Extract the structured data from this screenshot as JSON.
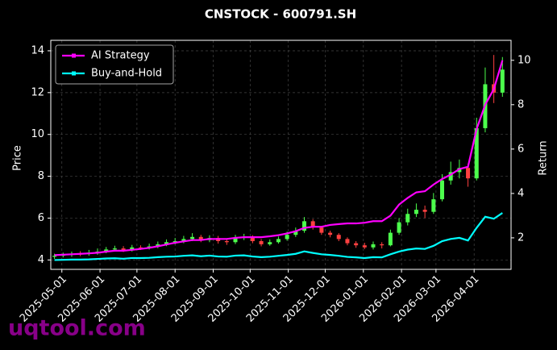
{
  "chart_data": {
    "type": "candlestick",
    "title": "CNSTOCK - 600791.SH",
    "y_label": "Price",
    "y2_label": "Return",
    "watermark": "uqtool.com",
    "x": [
      "2025-04-25",
      "2025-05-02",
      "2025-05-09",
      "2025-05-16",
      "2025-05-23",
      "2025-05-30",
      "2025-06-06",
      "2025-06-13",
      "2025-06-20",
      "2025-06-27",
      "2025-07-04",
      "2025-07-11",
      "2025-07-18",
      "2025-07-25",
      "2025-08-01",
      "2025-08-08",
      "2025-08-15",
      "2025-08-22",
      "2025-08-29",
      "2025-09-05",
      "2025-09-12",
      "2025-09-19",
      "2025-09-26",
      "2025-10-03",
      "2025-10-10",
      "2025-10-17",
      "2025-10-24",
      "2025-10-31",
      "2025-11-07",
      "2025-11-14",
      "2025-11-21",
      "2025-11-28",
      "2025-12-05",
      "2025-12-12",
      "2025-12-19",
      "2025-12-26",
      "2026-01-02",
      "2026-01-09",
      "2026-01-16",
      "2026-01-23",
      "2026-01-30",
      "2026-02-06",
      "2026-02-13",
      "2026-02-20",
      "2026-02-27",
      "2026-03-06",
      "2026-03-13",
      "2026-03-20",
      "2026-03-27",
      "2026-04-03",
      "2026-04-10",
      "2026-04-17",
      "2026-04-24"
    ],
    "open": [
      4.15,
      4.2,
      4.25,
      4.3,
      4.28,
      4.35,
      4.4,
      4.5,
      4.55,
      4.48,
      4.6,
      4.58,
      4.65,
      4.75,
      4.85,
      4.9,
      5.0,
      5.1,
      4.95,
      5.05,
      4.9,
      4.85,
      5.05,
      5.1,
      4.9,
      4.75,
      4.85,
      5.0,
      5.2,
      5.4,
      5.85,
      5.55,
      5.3,
      5.2,
      5.0,
      4.8,
      4.7,
      4.6,
      4.75,
      4.7,
      5.3,
      5.8,
      6.2,
      6.4,
      6.3,
      6.9,
      7.8,
      8.2,
      8.4,
      7.9,
      10.3,
      12.4,
      12.0
    ],
    "high": [
      4.3,
      4.35,
      4.4,
      4.42,
      4.48,
      4.55,
      4.62,
      4.68,
      4.66,
      4.72,
      4.7,
      4.78,
      4.88,
      4.98,
      5.05,
      5.15,
      5.28,
      5.2,
      5.18,
      5.15,
      5.02,
      5.2,
      5.25,
      5.18,
      5.0,
      4.98,
      5.12,
      5.35,
      5.55,
      6.05,
      5.95,
      5.62,
      5.4,
      5.28,
      5.08,
      4.9,
      4.82,
      4.88,
      4.85,
      5.45,
      6.0,
      6.45,
      6.7,
      6.6,
      7.2,
      8.1,
      8.7,
      8.8,
      8.6,
      10.8,
      13.2,
      13.8,
      13.7
    ],
    "low": [
      4.05,
      4.12,
      4.15,
      4.18,
      4.2,
      4.25,
      4.32,
      4.4,
      4.38,
      4.4,
      4.48,
      4.5,
      4.56,
      4.66,
      4.75,
      4.8,
      4.9,
      4.85,
      4.85,
      4.78,
      4.72,
      4.76,
      4.95,
      4.8,
      4.65,
      4.68,
      4.78,
      4.92,
      5.1,
      5.3,
      5.45,
      5.2,
      5.08,
      4.9,
      4.7,
      4.58,
      4.52,
      4.5,
      4.55,
      4.65,
      5.2,
      5.65,
      6.05,
      6.0,
      6.2,
      6.8,
      7.6,
      7.9,
      7.5,
      7.8,
      10.1,
      11.5,
      11.8
    ],
    "close": [
      4.2,
      4.25,
      4.3,
      4.28,
      4.35,
      4.4,
      4.5,
      4.55,
      4.48,
      4.6,
      4.58,
      4.65,
      4.75,
      4.85,
      4.9,
      5.0,
      5.1,
      4.95,
      5.05,
      4.9,
      4.85,
      5.05,
      5.1,
      4.9,
      4.75,
      4.85,
      5.0,
      5.2,
      5.4,
      5.85,
      5.55,
      5.3,
      5.2,
      5.0,
      4.8,
      4.7,
      4.6,
      4.75,
      4.7,
      5.3,
      5.8,
      6.2,
      6.4,
      6.3,
      6.9,
      7.8,
      8.2,
      8.4,
      7.9,
      10.3,
      12.4,
      12.0,
      13.1
    ],
    "up_color": "#4cff4c",
    "down_color": "#ff4040",
    "series": [
      {
        "name": "AI Strategy",
        "color": "#ff00ff",
        "axis": "y2",
        "values": [
          1.22,
          1.24,
          1.26,
          1.28,
          1.3,
          1.33,
          1.38,
          1.42,
          1.42,
          1.46,
          1.5,
          1.55,
          1.62,
          1.7,
          1.78,
          1.84,
          1.9,
          1.9,
          1.95,
          1.95,
          1.95,
          2.0,
          2.03,
          2.03,
          2.03,
          2.07,
          2.12,
          2.2,
          2.3,
          2.45,
          2.5,
          2.5,
          2.58,
          2.62,
          2.65,
          2.65,
          2.68,
          2.75,
          2.75,
          3.0,
          3.5,
          3.8,
          4.05,
          4.1,
          4.4,
          4.65,
          4.85,
          5.1,
          5.2,
          6.9,
          8.0,
          8.7,
          10.0
        ]
      },
      {
        "name": "Buy-and-Hold",
        "color": "#00ffff",
        "axis": "y2",
        "values": [
          1.0,
          1.01,
          1.02,
          1.02,
          1.03,
          1.05,
          1.07,
          1.08,
          1.06,
          1.09,
          1.09,
          1.1,
          1.13,
          1.15,
          1.16,
          1.19,
          1.21,
          1.17,
          1.2,
          1.16,
          1.15,
          1.2,
          1.21,
          1.16,
          1.13,
          1.15,
          1.19,
          1.23,
          1.28,
          1.39,
          1.32,
          1.26,
          1.23,
          1.19,
          1.14,
          1.12,
          1.09,
          1.13,
          1.12,
          1.26,
          1.38,
          1.47,
          1.52,
          1.5,
          1.64,
          1.85,
          1.95,
          2.0,
          1.88,
          2.45,
          2.95,
          2.86,
          3.12
        ]
      }
    ],
    "xlim": [
      "2025-04-22",
      "2026-05-01"
    ],
    "xticks": [
      "2025-05-01",
      "2025-06-01",
      "2025-07-01",
      "2025-08-01",
      "2025-09-01",
      "2025-10-01",
      "2025-11-01",
      "2025-12-01",
      "2026-01-01",
      "2026-02-01",
      "2026-03-01",
      "2026-04-01"
    ],
    "ylim": [
      3.55,
      14.5
    ],
    "yticks": [
      4,
      6,
      8,
      10,
      12,
      14
    ],
    "y2lim": [
      0.58,
      10.9
    ],
    "y2ticks": [
      2,
      4,
      6,
      8,
      10
    ],
    "grid": true,
    "legend": "upper-left"
  }
}
